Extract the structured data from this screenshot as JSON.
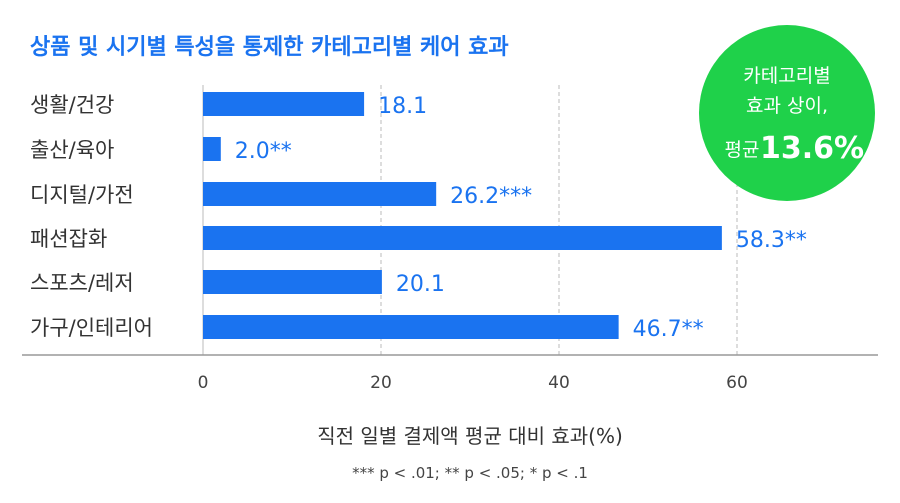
{
  "chart_data": {
    "type": "bar",
    "orientation": "horizontal",
    "title": "상품 및 시기별 특성을 통제한 카테고리별 케어 효과",
    "categories": [
      "생활/건강",
      "출산/육아",
      "디지털/가전",
      "패션잡화",
      "스포츠/레저",
      "가구/인테리어"
    ],
    "values": [
      18.1,
      2.0,
      26.2,
      58.3,
      20.1,
      46.7
    ],
    "data_labels": [
      "18.1",
      "2.0**",
      "26.2***",
      "58.3**",
      "20.1",
      "46.7**"
    ],
    "xlabel": "직전 일별 결제액 평균 대비 효과(%)",
    "xlim": [
      0,
      75
    ],
    "xticks": [
      0,
      20,
      40,
      60
    ],
    "grid": "vertical dashed",
    "footnote": "*** p < .01; ** p < .05; * p < .1",
    "callout": {
      "line1": "카테고리별",
      "line2": "효과 상이,",
      "prefix": "평균",
      "value": "13.6%"
    },
    "colors": {
      "bar": "#1a73f0",
      "title": "#1a73f0",
      "callout": "#1fd14a",
      "label": "#1a73f0"
    }
  }
}
